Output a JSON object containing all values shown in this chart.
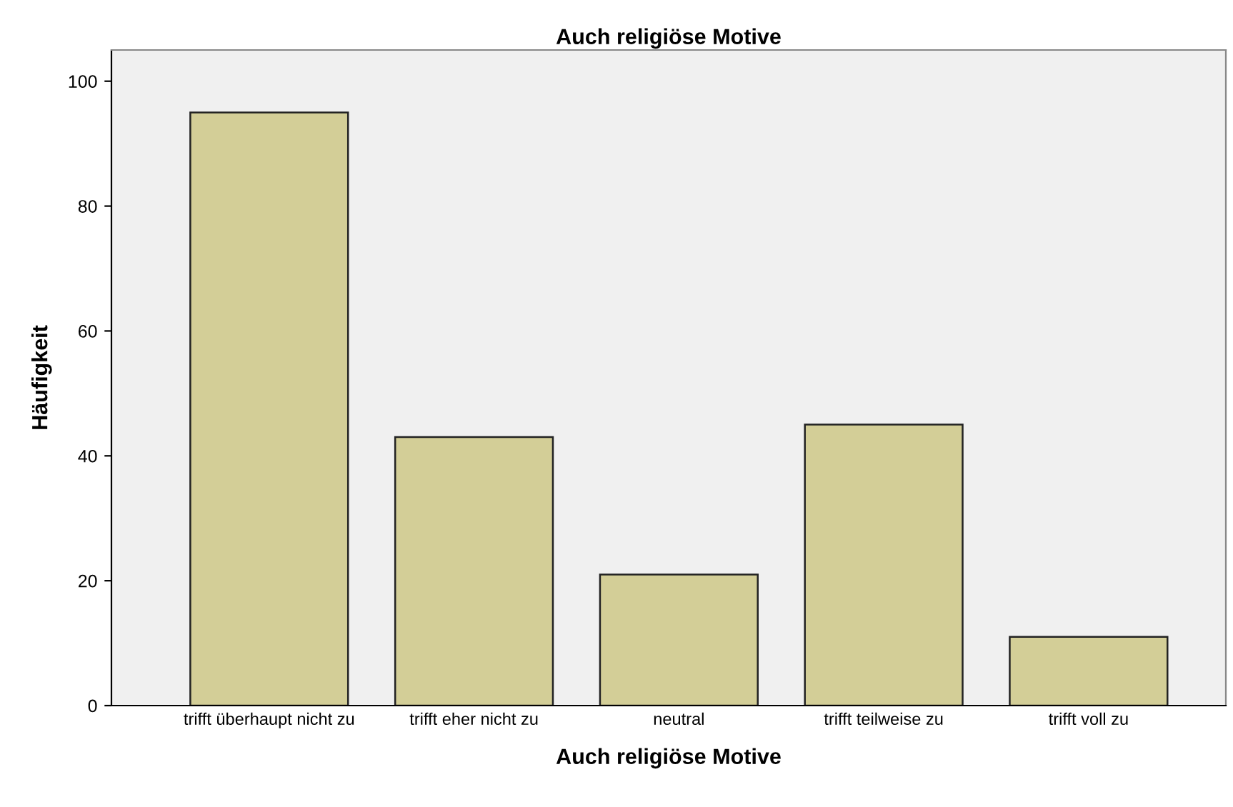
{
  "chart_data": {
    "type": "bar",
    "title": "Auch religiöse Motive",
    "xlabel": "Auch religiöse Motive",
    "ylabel": "Häufigkeit",
    "categories": [
      "trifft überhaupt nicht zu",
      "trifft eher nicht zu",
      "neutral",
      "trifft teilweise zu",
      "trifft voll zu"
    ],
    "values": [
      95,
      43,
      21,
      45,
      11
    ],
    "color": "#d3ce97",
    "ylim": [
      0,
      105
    ],
    "yticks": [
      0,
      20,
      40,
      60,
      80,
      100
    ],
    "grid": false,
    "legend": false
  }
}
